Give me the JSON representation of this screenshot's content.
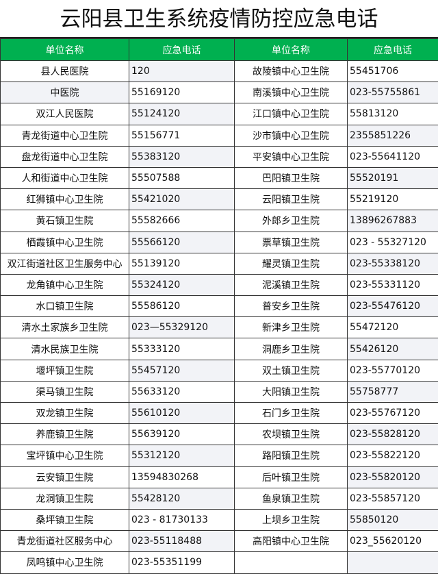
{
  "title": "云阳县卫生系统疫情防控应急电话",
  "headers": [
    "单位名称",
    "应急电话",
    "单位名称",
    "应急电话"
  ],
  "colors": {
    "header_bg": "#00b050",
    "header_text": "#ffffff",
    "shade": "#f2f3f7"
  },
  "rows": [
    {
      "name1": "县人民医院",
      "phone1": "120",
      "name2": "故陵镇中心卫生院",
      "phone2": "55451706"
    },
    {
      "name1": "中医院",
      "phone1": "55169120",
      "name2": "南溪镇中心卫生院",
      "phone2": "023-55755861"
    },
    {
      "name1": "双江人民医院",
      "phone1": "55124120",
      "name2": "江口镇中心卫生院",
      "phone2": "55813120"
    },
    {
      "name1": "青龙街道中心卫生院",
      "phone1": "55156771",
      "name2": "沙市镇中心卫生院",
      "phone2": "2355851226"
    },
    {
      "name1": "盘龙街道中心卫生院",
      "phone1": "55383120",
      "name2": "平安镇中心卫生院",
      "phone2": "023-55641120"
    },
    {
      "name1": "人和街道中心卫生院",
      "phone1": "55507588",
      "name2": "巴阳镇卫生院",
      "phone2": "55520191"
    },
    {
      "name1": "红狮镇中心卫生院",
      "phone1": "55421020",
      "name2": "云阳镇卫生院",
      "phone2": "55219120"
    },
    {
      "name1": "黄石镇卫生院",
      "phone1": "55582666",
      "name2": "外郎乡卫生院",
      "phone2": "13896267883"
    },
    {
      "name1": "栖霞镇中心卫生院",
      "phone1": "55566120",
      "name2": "票草镇卫生院",
      "phone2": "023 - 55327120"
    },
    {
      "name1": "双江街道社区卫生服务中心",
      "phone1": "55139120",
      "name2": "耀灵镇卫生院",
      "phone2": "023-55338120"
    },
    {
      "name1": "龙角镇中心卫生院",
      "phone1": "55324120",
      "name2": "泥溪镇卫生院",
      "phone2": "023-55331120"
    },
    {
      "name1": "水口镇卫生院",
      "phone1": "55586120",
      "name2": "普安乡卫生院",
      "phone2": "023-55476120"
    },
    {
      "name1": "清水土家族乡卫生院",
      "phone1": "023—55329120",
      "name2": "新津乡卫生院",
      "phone2": "55472120"
    },
    {
      "name1": "清水民族卫生院",
      "phone1": "55333120",
      "name2": "洞鹿乡卫生院",
      "phone2": "55426120"
    },
    {
      "name1": "堰坪镇卫生院",
      "phone1": "55457120",
      "name2": "双土镇卫生院",
      "phone2": "023-55770120"
    },
    {
      "name1": "渠马镇卫生院",
      "phone1": "55633120",
      "name2": "大阳镇卫生院",
      "phone2": "55758777"
    },
    {
      "name1": "双龙镇卫生院",
      "phone1": "55610120",
      "name2": "石门乡卫生院",
      "phone2": "023-55767120"
    },
    {
      "name1": "养鹿镇卫生院",
      "phone1": "55639120",
      "name2": "农坝镇卫生院",
      "phone2": "023-55828120"
    },
    {
      "name1": "宝坪镇中心卫生院",
      "phone1": "55312120",
      "name2": "路阳镇卫生院",
      "phone2": "023-55822120"
    },
    {
      "name1": "云安镇卫生院",
      "phone1": "13594830268",
      "name2": "后叶镇卫生院",
      "phone2": "023-55820120"
    },
    {
      "name1": "龙洞镇卫生院",
      "phone1": "55428120",
      "name2": "鱼泉镇卫生院",
      "phone2": "023-55857120"
    },
    {
      "name1": "桑坪镇卫生院",
      "phone1": "023 - 81730133",
      "name2": "上坝乡卫生院",
      "phone2": "55850120"
    },
    {
      "name1": "青龙街道社区服务中心",
      "phone1": "023-55118488",
      "name2": "高阳镇中心卫生院",
      "phone2": "023_55620120"
    },
    {
      "name1": "凤鸣镇中心卫生院",
      "phone1": "023-55351199",
      "name2": "",
      "phone2": ""
    }
  ]
}
